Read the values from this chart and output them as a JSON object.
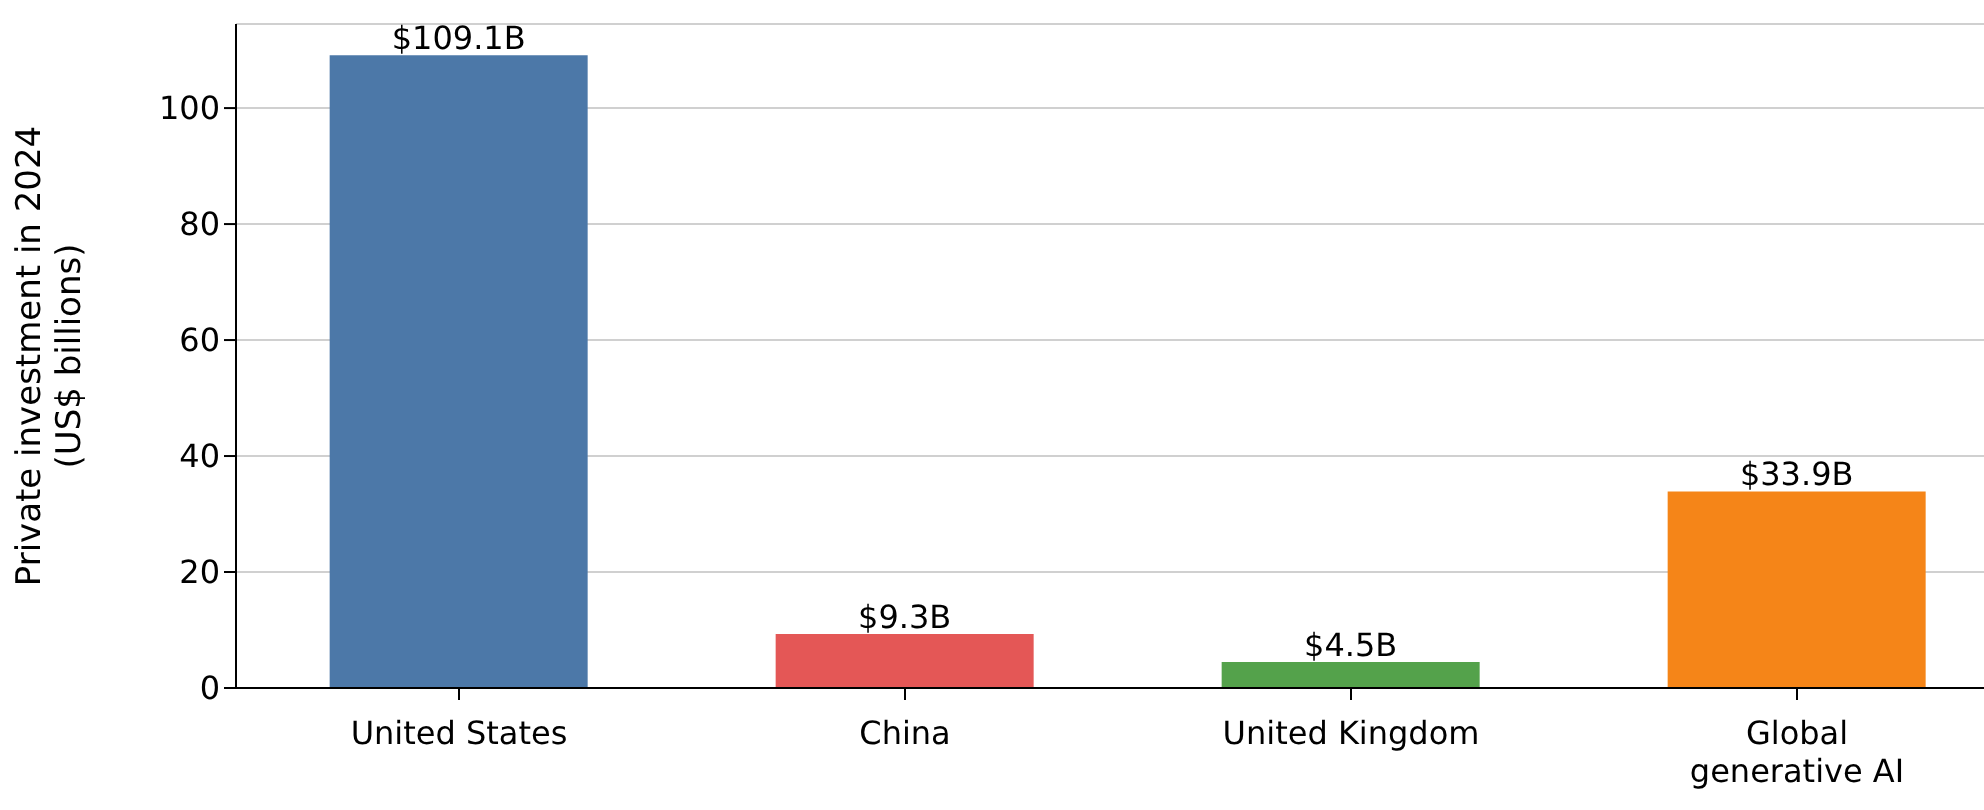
{
  "chart_data": {
    "type": "bar",
    "ylabel": "Private investment in 2024\n(US$ billions)",
    "categories": [
      "United States",
      "China",
      "United Kingdom",
      "Global generative AI"
    ],
    "values": [
      109.1,
      9.3,
      4.5,
      33.9
    ],
    "colors": [
      "#4c78a8",
      "#e45756",
      "#54a24b",
      "#f58518"
    ],
    "value_labels": [
      "$109.1B",
      "$9.3B",
      "$4.5B",
      "$33.9B"
    ],
    "ylim": [
      0,
      114.5
    ],
    "yticks": [
      0,
      20,
      40,
      60,
      80,
      100
    ],
    "grid": "y"
  }
}
